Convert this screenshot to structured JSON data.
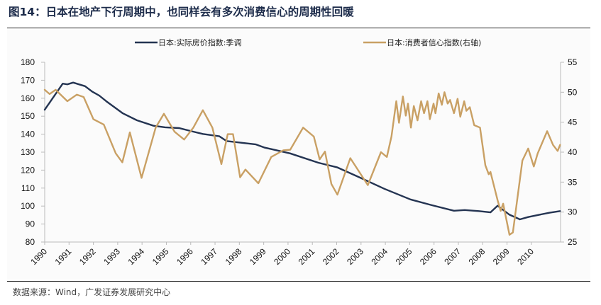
{
  "title": "图14：日本在地产下行周期中，也同样会有多次消费信心的周期性回暖",
  "source": "数据来源：Wind，广发证券发展研究中心",
  "chart_data": {
    "type": "line",
    "title": "图14：日本在地产下行周期中，也同样会有多次消费信心的周期性回暖",
    "x_ticks": [
      "1990",
      "1991",
      "1992",
      "1993",
      "1994",
      "1995",
      "1996",
      "1997",
      "1998",
      "1999",
      "2000",
      "2001",
      "2002",
      "2003",
      "2004",
      "2005",
      "2006",
      "2007",
      "2008",
      "2009",
      "2010"
    ],
    "xlim": [
      1990,
      2011.2
    ],
    "y_left": {
      "ylim": [
        80,
        180
      ],
      "ticks": [
        "80",
        "90",
        "100",
        "110",
        "120",
        "130",
        "140",
        "150",
        "160",
        "170",
        "180"
      ]
    },
    "y_right": {
      "ylim": [
        25,
        55
      ],
      "ticks": [
        "25",
        "30",
        "35",
        "40",
        "45",
        "50",
        "55"
      ]
    },
    "legend_position": "top",
    "grid": false,
    "series": [
      {
        "name": "日本:实际房价指数:季调",
        "axis": "left",
        "color": "#243452",
        "points": [
          [
            1990.0,
            153.6
          ],
          [
            1990.74,
            168.1
          ],
          [
            1990.93,
            167.7
          ],
          [
            1991.17,
            168.7
          ],
          [
            1991.66,
            166.7
          ],
          [
            1991.95,
            163.7
          ],
          [
            1992.24,
            161.5
          ],
          [
            1992.53,
            158.3
          ],
          [
            1993.2,
            151.7
          ],
          [
            1993.79,
            147.7
          ],
          [
            1994.47,
            144.7
          ],
          [
            1994.95,
            143.8
          ],
          [
            1995.53,
            143.4
          ],
          [
            1996.1,
            141.4
          ],
          [
            1996.5,
            140.1
          ],
          [
            1997.18,
            138.8
          ],
          [
            1997.47,
            136.2
          ],
          [
            1998.68,
            134.3
          ],
          [
            1999.02,
            132.6
          ],
          [
            2000.09,
            129.3
          ],
          [
            2001.25,
            124.1
          ],
          [
            2002.03,
            121.5
          ],
          [
            2003.0,
            115.6
          ],
          [
            2003.96,
            109.6
          ],
          [
            2005.03,
            103.7
          ],
          [
            2005.9,
            100.5
          ],
          [
            2006.82,
            97.4
          ],
          [
            2007.26,
            97.8
          ],
          [
            2007.84,
            97.2
          ],
          [
            2008.32,
            96.5
          ],
          [
            2008.61,
            100.2
          ],
          [
            2009.1,
            95.2
          ],
          [
            2009.53,
            92.6
          ],
          [
            2009.87,
            93.9
          ],
          [
            2010.26,
            95.0
          ],
          [
            2010.75,
            96.3
          ],
          [
            2011.18,
            97.2
          ]
        ]
      },
      {
        "name": "日本:消费者信心指数(右轴)",
        "axis": "right",
        "color": "#c9a064",
        "points": [
          [
            1990.0,
            50.4
          ],
          [
            1990.2,
            49.7
          ],
          [
            1990.45,
            50.4
          ],
          [
            1990.93,
            48.5
          ],
          [
            1991.32,
            49.6
          ],
          [
            1991.6,
            49.2
          ],
          [
            1992.0,
            45.5
          ],
          [
            1992.43,
            44.6
          ],
          [
            1992.92,
            39.8
          ],
          [
            1993.19,
            38.3
          ],
          [
            1993.5,
            43.3
          ],
          [
            1993.98,
            35.7
          ],
          [
            1994.56,
            44.1
          ],
          [
            1994.9,
            46.4
          ],
          [
            1995.34,
            43.4
          ],
          [
            1995.73,
            42.1
          ],
          [
            1996.11,
            44.1
          ],
          [
            1996.5,
            47.0
          ],
          [
            1996.89,
            44.1
          ],
          [
            1997.26,
            38.0
          ],
          [
            1997.52,
            43.0
          ],
          [
            1997.74,
            43.0
          ],
          [
            1998.03,
            35.8
          ],
          [
            1998.25,
            37.1
          ],
          [
            1998.78,
            34.8
          ],
          [
            1999.31,
            39.2
          ],
          [
            1999.8,
            40.3
          ],
          [
            2000.09,
            40.4
          ],
          [
            2000.62,
            44.1
          ],
          [
            2001.06,
            42.6
          ],
          [
            2001.3,
            38.8
          ],
          [
            2001.52,
            40.1
          ],
          [
            2001.78,
            34.7
          ],
          [
            2002.03,
            32.9
          ],
          [
            2002.56,
            39.0
          ],
          [
            2003.28,
            34.5
          ],
          [
            2003.82,
            40.0
          ],
          [
            2004.06,
            39.2
          ],
          [
            2004.25,
            42.6
          ],
          [
            2004.45,
            48.5
          ],
          [
            2004.56,
            44.9
          ],
          [
            2004.72,
            49.3
          ],
          [
            2004.84,
            46.1
          ],
          [
            2004.93,
            48.1
          ],
          [
            2005.05,
            44.1
          ],
          [
            2005.17,
            47.7
          ],
          [
            2005.32,
            45.3
          ],
          [
            2005.47,
            48.5
          ],
          [
            2005.59,
            46.5
          ],
          [
            2005.73,
            48.5
          ],
          [
            2005.83,
            45.5
          ],
          [
            2005.98,
            48.1
          ],
          [
            2006.06,
            46.5
          ],
          [
            2006.19,
            49.8
          ],
          [
            2006.32,
            47.9
          ],
          [
            2006.43,
            50.0
          ],
          [
            2006.56,
            48.1
          ],
          [
            2006.66,
            48.7
          ],
          [
            2006.82,
            46.5
          ],
          [
            2006.97,
            48.9
          ],
          [
            2007.08,
            45.9
          ],
          [
            2007.24,
            48.5
          ],
          [
            2007.33,
            46.9
          ],
          [
            2007.47,
            47.5
          ],
          [
            2007.65,
            44.5
          ],
          [
            2007.89,
            44.1
          ],
          [
            2008.11,
            37.8
          ],
          [
            2008.25,
            36.3
          ],
          [
            2008.32,
            36.7
          ],
          [
            2008.61,
            32.0
          ],
          [
            2008.74,
            30.2
          ],
          [
            2008.84,
            31.4
          ],
          [
            2009.1,
            26.2
          ],
          [
            2009.24,
            26.6
          ],
          [
            2009.63,
            38.6
          ],
          [
            2009.87,
            40.6
          ],
          [
            2010.1,
            37.6
          ],
          [
            2010.26,
            39.8
          ],
          [
            2010.65,
            43.5
          ],
          [
            2010.89,
            41.2
          ],
          [
            2011.08,
            40.2
          ],
          [
            2011.18,
            41.2
          ]
        ]
      }
    ]
  }
}
